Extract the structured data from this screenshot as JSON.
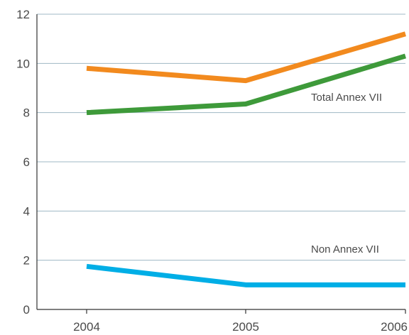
{
  "chart_data": {
    "type": "line",
    "title": "",
    "xlabel": "",
    "ylabel": "",
    "x": [
      "2004",
      "2005",
      "2006"
    ],
    "ylim": [
      0,
      12
    ],
    "yticks": [
      0,
      2,
      4,
      6,
      8,
      10,
      12
    ],
    "grid": "horizontal",
    "series": [
      {
        "color": "#f28a1e",
        "values": [
          9.8,
          9.3,
          11.2
        ]
      },
      {
        "color": "#3e9a3a",
        "values": [
          8.0,
          8.35,
          10.3
        ]
      },
      {
        "color": "#00aee6",
        "values": [
          1.75,
          1.0,
          1.0
        ]
      }
    ],
    "annotations": [
      {
        "text": "Total Annex VII",
        "near": "green series, between 2005 and 2006"
      },
      {
        "text": "Non Annex VII",
        "near": "above blue series, between 2005 and 2006"
      }
    ]
  }
}
